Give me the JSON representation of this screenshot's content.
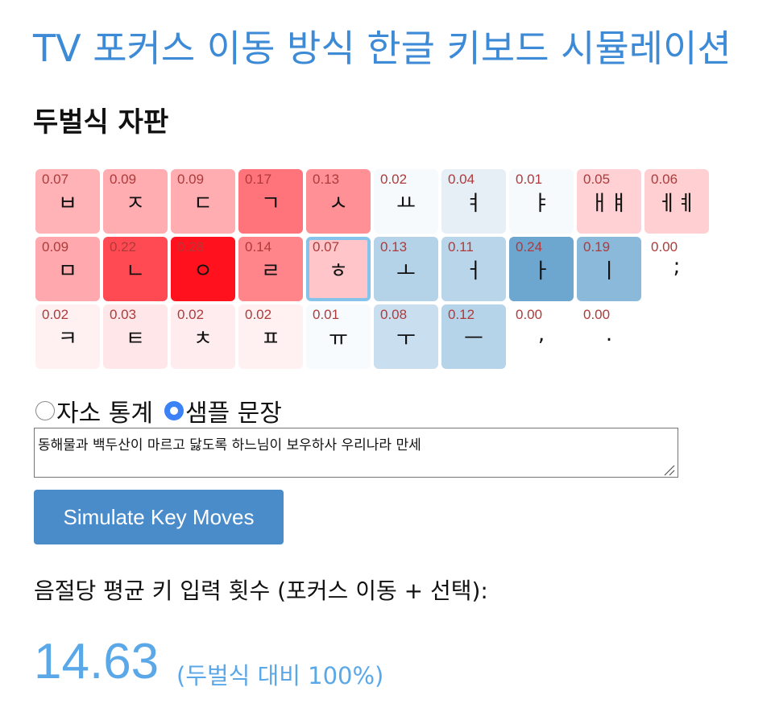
{
  "page_title": "TV 포커스 이동 방식 한글 키보드 시뮬레이션",
  "layout_title": "두벌식 자판",
  "keyboard": {
    "rows": [
      [
        {
          "char": "ㅂ",
          "value": "0.07",
          "color": "#ffb3b7"
        },
        {
          "char": "ㅈ",
          "value": "0.09",
          "color": "#ffadb1"
        },
        {
          "char": "ㄷ",
          "value": "0.09",
          "color": "#ffadb1"
        },
        {
          "char": "ㄱ",
          "value": "0.17",
          "color": "#ff737a"
        },
        {
          "char": "ㅅ",
          "value": "0.13",
          "color": "#ff9095"
        },
        {
          "char": "ㅛ",
          "value": "0.02",
          "color": "#f7fafc"
        },
        {
          "char": "ㅕ",
          "value": "0.04",
          "color": "#e6eef6"
        },
        {
          "char": "ㅑ",
          "value": "0.01",
          "color": "#f7fafd"
        },
        {
          "char": "ㅐㅒ",
          "value": "0.05",
          "color": "#ffd1d4"
        },
        {
          "char": "ㅔㅖ",
          "value": "0.06",
          "color": "#ffcfd1"
        }
      ],
      [
        {
          "char": "ㅁ",
          "value": "0.09",
          "color": "#ffa8ad"
        },
        {
          "char": "ㄴ",
          "value": "0.22",
          "color": "#ff4a53"
        },
        {
          "char": "ㅇ",
          "value": "0.28",
          "color": "#ff121e"
        },
        {
          "char": "ㄹ",
          "value": "0.14",
          "color": "#ff858b"
        },
        {
          "char": "ㅎ",
          "value": "0.07",
          "color": "#ffc5c8",
          "focused": true
        },
        {
          "char": "ㅗ",
          "value": "0.13",
          "color": "#b5d3e8"
        },
        {
          "char": "ㅓ",
          "value": "0.11",
          "color": "#b8d5e9"
        },
        {
          "char": "ㅏ",
          "value": "0.24",
          "color": "#6da6cf"
        },
        {
          "char": "ㅣ",
          "value": "0.19",
          "color": "#8bb9da"
        },
        {
          "char": ";",
          "value": "0.00",
          "color": "#ffffff"
        }
      ],
      [
        {
          "char": "ㅋ",
          "value": "0.02",
          "color": "#fff1f2"
        },
        {
          "char": "ㅌ",
          "value": "0.03",
          "color": "#ffe6e8"
        },
        {
          "char": "ㅊ",
          "value": "0.02",
          "color": "#ffecee"
        },
        {
          "char": "ㅍ",
          "value": "0.02",
          "color": "#fff0f1"
        },
        {
          "char": "ㅠ",
          "value": "0.01",
          "color": "#f8fbfe"
        },
        {
          "char": "ㅜ",
          "value": "0.08",
          "color": "#c9dfef"
        },
        {
          "char": "ㅡ",
          "value": "0.12",
          "color": "#b5d3e9"
        },
        {
          "char": ",",
          "value": "0.00",
          "color": "#ffffff"
        },
        {
          "char": ".",
          "value": "0.00",
          "color": "#ffffff"
        }
      ]
    ]
  },
  "mode": {
    "options": [
      {
        "label": "자소 통계",
        "checked": false
      },
      {
        "label": "샘플 문장",
        "checked": true
      }
    ]
  },
  "sentence": {
    "value": "동해물과 백두산이 마르고 닳도록 하느님이 보우하사 우리나라 만세"
  },
  "simulate_button": {
    "label": "Simulate Key Moves"
  },
  "result": {
    "label": "음절당 평균 키 입력 횟수 (포커스 이동 + 선택):",
    "value": "14.63",
    "comparison": "(두벌식 대비 100%)"
  },
  "colors": {
    "title": "#3d8ad6",
    "button": "#4a8bc9",
    "result": "#5ba8e8",
    "key_value_text": "#b03a3a",
    "focus_border": "#86c3ea",
    "radio_checked": "#3b82f6"
  }
}
